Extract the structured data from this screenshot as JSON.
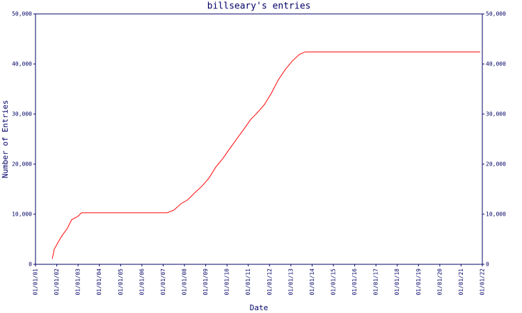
{
  "chart_data": {
    "type": "line",
    "title": "billseary's entries",
    "x_label": "Date",
    "y_label": "Number of Entries",
    "x": [
      2001.79,
      2001.88,
      2002.21,
      2002.5,
      2002.7,
      2003.0,
      2003.16,
      2007.18,
      2007.5,
      2007.84,
      2008.16,
      2008.49,
      2008.82,
      2009.15,
      2009.47,
      2009.8,
      2010.13,
      2010.45,
      2010.78,
      2011.11,
      2011.43,
      2011.76,
      2012.09,
      2012.42,
      2012.74,
      2013.07,
      2013.4,
      2013.66,
      2021.9
    ],
    "series": [
      {
        "color": "#ff0000",
        "values": [
          1100,
          3000,
          5500,
          7200,
          8900,
          9600,
          10300,
          10300,
          10800,
          12100,
          12900,
          14300,
          15600,
          17200,
          19400,
          21100,
          23100,
          25000,
          26900,
          28900,
          30300,
          31900,
          34200,
          36900,
          38900,
          40600,
          41900,
          42400,
          42400
        ]
      }
    ],
    "xlim": [
      2001,
      2022
    ],
    "xticks": [
      {
        "value": 2001,
        "label": "01/01/01"
      },
      {
        "value": 2002,
        "label": "01/01/02"
      },
      {
        "value": 2003,
        "label": "01/01/03"
      },
      {
        "value": 2004,
        "label": "01/01/04"
      },
      {
        "value": 2005,
        "label": "01/01/05"
      },
      {
        "value": 2006,
        "label": "01/01/06"
      },
      {
        "value": 2007,
        "label": "01/01/07"
      },
      {
        "value": 2008,
        "label": "01/01/08"
      },
      {
        "value": 2009,
        "label": "01/01/09"
      },
      {
        "value": 2010,
        "label": "01/01/10"
      },
      {
        "value": 2011,
        "label": "01/01/11"
      },
      {
        "value": 2012,
        "label": "01/01/12"
      },
      {
        "value": 2013,
        "label": "01/01/13"
      },
      {
        "value": 2014,
        "label": "01/01/14"
      },
      {
        "value": 2015,
        "label": "01/01/15"
      },
      {
        "value": 2016,
        "label": "01/01/16"
      },
      {
        "value": 2017,
        "label": "01/01/17"
      },
      {
        "value": 2018,
        "label": "01/01/18"
      },
      {
        "value": 2019,
        "label": "01/01/19"
      },
      {
        "value": 2020,
        "label": "01/01/20"
      },
      {
        "value": 2021,
        "label": "01/01/21"
      },
      {
        "value": 2022,
        "label": "01/01/22"
      }
    ],
    "ylim": [
      0,
      50000
    ],
    "yticks": [
      0,
      {
        "value": 10000,
        "label": "10,000"
      },
      {
        "value": 20000,
        "label": "20,000"
      },
      {
        "value": 30000,
        "label": "30,000"
      },
      {
        "value": 40000,
        "label": "40,000"
      },
      {
        "value": 50000,
        "label": "50,000"
      }
    ],
    "y2lim": [
      0,
      50000
    ],
    "y2ticks": [
      0,
      {
        "value": 10000,
        "label": "10,000"
      },
      {
        "value": 20000,
        "label": "20,000"
      },
      {
        "value": 30000,
        "label": "30,000"
      },
      {
        "value": 40000,
        "label": "40,000"
      },
      {
        "value": 50000,
        "label": "50,000"
      }
    ]
  }
}
